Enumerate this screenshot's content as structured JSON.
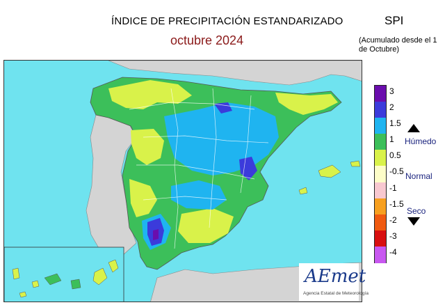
{
  "header": {
    "title": "ÍNDICE DE PRECIPITACIÓN ESTANDARIZADO",
    "period": "octubre  2024",
    "index_name": "SPI",
    "accumulation_note": "(Acumulado desde el 1 de Octubre)"
  },
  "legend": {
    "ticks": [
      "3",
      "2",
      "1.5",
      "1",
      "0.5",
      "-0.5",
      "-1",
      "-1.5",
      "-2",
      "-3",
      "-4"
    ],
    "classes": [
      {
        "color": "#6a0dad"
      },
      {
        "color": "#3b3bdb"
      },
      {
        "color": "#1fb4f0"
      },
      {
        "color": "#3cbf5a"
      },
      {
        "color": "#d9f24a"
      },
      {
        "color": "#fdfdc8"
      },
      {
        "color": "#f8c8d0"
      },
      {
        "color": "#f7a020"
      },
      {
        "color": "#f05a10"
      },
      {
        "color": "#d81010"
      },
      {
        "color": "#c858f0"
      }
    ],
    "wet_label": "Húmedo",
    "normal_label": "Normal",
    "dry_label": "Seco"
  },
  "logo": {
    "name": "AEmet",
    "subtitle": "Agencia Estatal de Meteorología"
  }
}
